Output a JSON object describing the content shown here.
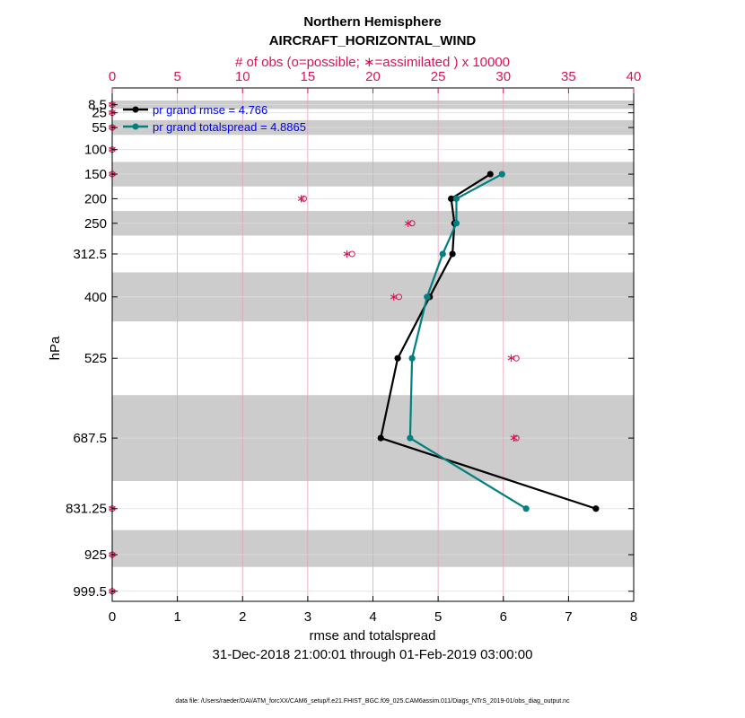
{
  "chart_data": {
    "type": "line",
    "title": "Northern Hemisphere",
    "subtitle": "AIRCRAFT_HORIZONTAL_WIND",
    "top_axis_label": "# of obs (o=possible; ∗=assimilated ) x 10000",
    "top_axis_ticks": [
      "0",
      "5",
      "10",
      "15",
      "20",
      "25",
      "30",
      "35",
      "40"
    ],
    "top_axis_range": [
      0,
      40
    ],
    "xlabel": "rmse and totalspread",
    "x_ticks": [
      "0",
      "1",
      "2",
      "3",
      "4",
      "5",
      "6",
      "7",
      "8"
    ],
    "xlim": [
      0,
      8
    ],
    "ylabel": "hPa",
    "y_ticks": [
      "8.5",
      "25",
      "55",
      "100",
      "150",
      "200",
      "250",
      "312.5",
      "400",
      "525",
      "687.5",
      "831.25",
      "925",
      "999.5"
    ],
    "levels": [
      8.5,
      25,
      55,
      100,
      150,
      200,
      250,
      312.5,
      400,
      525,
      687.5,
      831.25,
      925,
      999.5
    ],
    "ylim": [
      0,
      1020
    ],
    "shaded_bands_hPa": [
      [
        0,
        17
      ],
      [
        40,
        70
      ],
      [
        125,
        175
      ],
      [
        225,
        275
      ],
      [
        350,
        450
      ],
      [
        600,
        775
      ],
      [
        875,
        950
      ]
    ],
    "series": [
      {
        "name": "pr grand rmse = 4.766",
        "color": "#000000",
        "x": [
          5.8,
          5.2,
          5.25,
          5.22,
          4.87,
          4.38,
          4.12,
          7.42
        ],
        "y": [
          150,
          200,
          250,
          312.5,
          400,
          525,
          687.5,
          831.25
        ]
      },
      {
        "name": "pr grand totalspread = 4.8865",
        "color": "#008080",
        "x": [
          5.98,
          5.28,
          5.28,
          5.07,
          4.83,
          4.6,
          4.57,
          6.35
        ],
        "y": [
          150,
          200,
          250,
          312.5,
          400,
          525,
          687.5,
          831.25
        ]
      }
    ],
    "obs_counts_x10000": {
      "levels": [
        8.5,
        25,
        55,
        100,
        150,
        200,
        250,
        312.5,
        400,
        525,
        687.5,
        831.25,
        925,
        999.5
      ],
      "possible": [
        0,
        0,
        0,
        0,
        0,
        14.7,
        23.0,
        18.4,
        22.0,
        31.0,
        31.0,
        0,
        0,
        0
      ],
      "assimilated": [
        0,
        0,
        0,
        0,
        0,
        14.5,
        22.7,
        18.0,
        21.6,
        30.6,
        30.8,
        0,
        0,
        0
      ]
    },
    "date_range": "31-Dec-2018 21:00:01 through 01-Feb-2019 03:00:00",
    "footnote": "data file: /Users/raeder/DAI/ATM_forcXX/CAM6_setup/f.e21.FHIST_BGC.f09_025.CAM6assim.011/Diags_NTrS_2019-01/obs_diag_output.nc"
  },
  "colors": {
    "accent": "#d4145a",
    "rmse": "#000000",
    "spread": "#008080",
    "band": "#cccccc",
    "legend_text": "#0000ee"
  }
}
